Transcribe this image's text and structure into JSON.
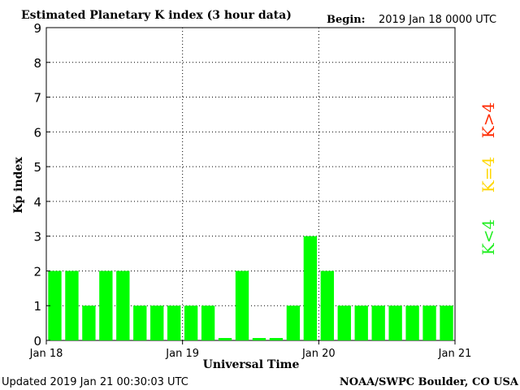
{
  "header": {
    "title": "Estimated Planetary K index (3 hour data)",
    "begin_label": "Begin:",
    "begin_value": "2019 Jan 18 0000 UTC"
  },
  "footer": {
    "updated": "Updated 2019 Jan 21 00:30:03 UTC",
    "source": "NOAA/SWPC Boulder, CO USA"
  },
  "legend": [
    {
      "label": "K>4",
      "color": "#ff2a00"
    },
    {
      "label": "K=4",
      "color": "#ffd700"
    },
    {
      "label": "K<4",
      "color": "#22ee22"
    }
  ],
  "chart_data": {
    "type": "bar",
    "title": "Estimated Planetary K index (3 hour data)",
    "xlabel": "Universal Time",
    "ylabel": "Kp index",
    "ylim": [
      0,
      9
    ],
    "yticks": [
      0,
      1,
      2,
      3,
      4,
      5,
      6,
      7,
      8,
      9
    ],
    "xticks": [
      "Jan 18",
      "Jan 19",
      "Jan 20",
      "Jan 21"
    ],
    "grid": "dotted",
    "bar_color": "#00ff00",
    "series": [
      {
        "values": [
          2,
          2,
          1,
          2,
          2,
          1,
          1,
          1,
          1,
          1,
          0.07,
          2,
          0.07,
          0.07,
          1,
          3,
          2,
          1,
          1,
          1,
          1,
          1,
          1,
          1
        ]
      }
    ]
  }
}
